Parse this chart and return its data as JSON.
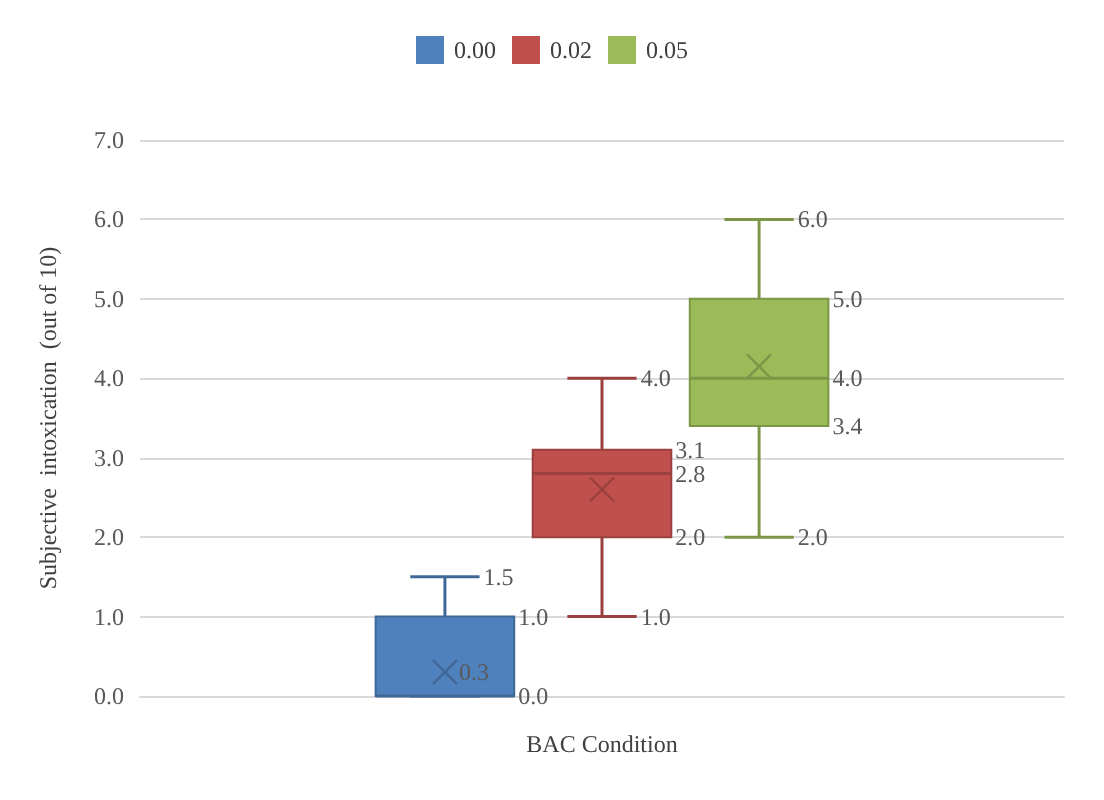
{
  "chart_data": {
    "type": "box",
    "xlabel": "BAC Condition",
    "ylabel": "Subjective  intoxication  (out of 10)",
    "categories": [
      null
    ],
    "series": [
      {
        "name": "0.00",
        "color": "#4f81bd",
        "boxes": [
          {
            "low": 0,
            "q1": 0,
            "median": 0,
            "q3": 1,
            "high": 1.5,
            "mean": 0.3
          }
        ],
        "value_labels": [
          [
            "1.5",
            "1.0",
            "0.0",
            null,
            null,
            "0.3"
          ]
        ]
      },
      {
        "name": "0.02",
        "color": "#c0504d",
        "boxes": [
          {
            "low": 1,
            "q1": 2,
            "median": 2.8,
            "q3": 3.1,
            "high": 4,
            "mean": 2.6
          }
        ],
        "value_labels": [
          [
            "4.0",
            "3.1",
            "2.8",
            "2.0",
            "1.0",
            null
          ]
        ]
      },
      {
        "name": "0.05",
        "color": "#9bbb59",
        "boxes": [
          {
            "low": 2,
            "q1": 3.4,
            "median": 4,
            "q3": 5,
            "high": 6,
            "mean": 4.15
          }
        ],
        "value_labels": [
          [
            "6.0",
            "5.0",
            "4.0",
            "3.4",
            "2.0",
            null
          ]
        ]
      }
    ],
    "ylim": [
      0,
      7
    ],
    "yticks": [
      {
        "value": 0,
        "label": "0.0"
      },
      {
        "value": 1,
        "label": "1.0"
      },
      {
        "value": 2,
        "label": "2.0"
      },
      {
        "value": 3,
        "label": "3.0"
      },
      {
        "value": 4,
        "label": "4.0"
      },
      {
        "value": 5,
        "label": "5.0"
      },
      {
        "value": 6,
        "label": "6.0"
      },
      {
        "value": 7,
        "label": "7.0"
      }
    ],
    "grid": "y",
    "legend": "top",
    "marker": "cross"
  }
}
